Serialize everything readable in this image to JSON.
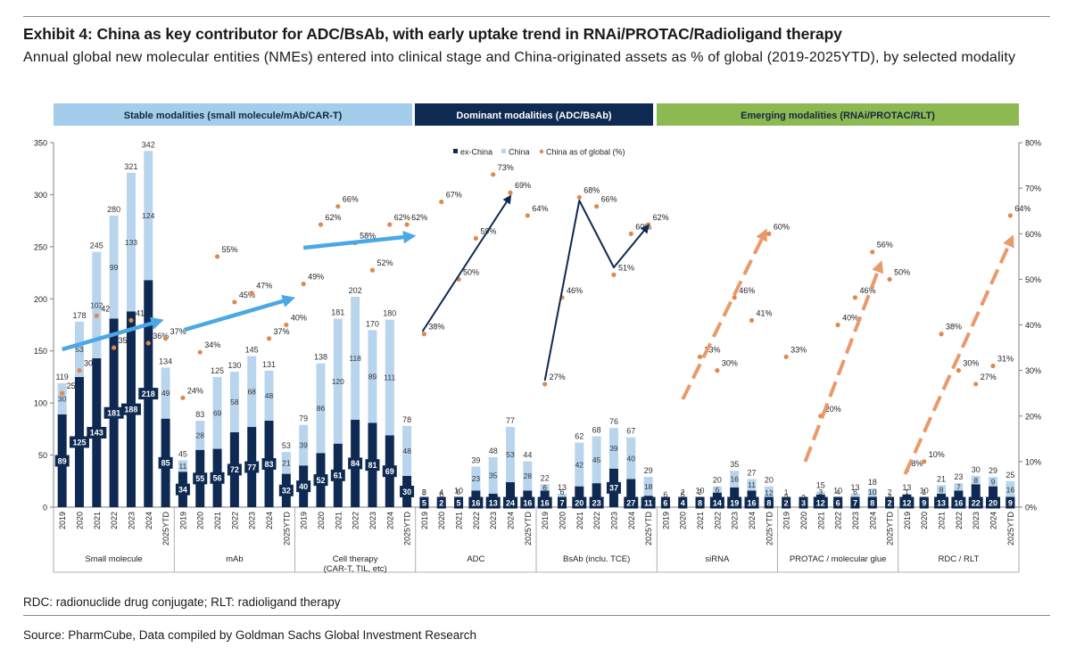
{
  "header": {
    "title": "Exhibit 4: China as key contributor for ADC/BsAb, with early uptake trend in RNAi/PROTAC/Radioligand therapy",
    "subtitle": "Annual global new molecular entities (NMEs) entered into clinical stage and China-originated assets as % of global (2019-2025YTD), by selected modality"
  },
  "footer": {
    "note": "RDC: radionuclide drug conjugate; RLT: radioligand therapy",
    "source": "Source: PharmCube, Data compiled by Goldman Sachs Global Investment Research"
  },
  "colors": {
    "exchina": "#0e2a52",
    "china": "#b9d5ee",
    "pct": "#e0894f",
    "stable_band": "#a4cdeb",
    "dominant_band": "#0e2a52",
    "emerging_band": "#8db953",
    "arrow_blue": "#4aa8e4",
    "arrow_navy": "#0e2a52",
    "arrow_orange": "#e89a6a"
  },
  "chart_data": {
    "type": "bar",
    "stacked": true,
    "categories": [
      "2019",
      "2020",
      "2021",
      "2022",
      "2023",
      "2024",
      "2025YTD"
    ],
    "y_left": {
      "min": 0,
      "max": 350,
      "ticks": [
        "0",
        "50",
        "100",
        "150",
        "200",
        "250",
        "300",
        "350"
      ]
    },
    "y_right": {
      "min": 0,
      "max": 80,
      "ticks": [
        "0%",
        "10%",
        "20%",
        "30%",
        "40%",
        "50%",
        "60%",
        "70%",
        "80%"
      ]
    },
    "legend": [
      {
        "name": "ex-China",
        "kind": "bar"
      },
      {
        "name": "China",
        "kind": "bar"
      },
      {
        "name": "China as of global (%)",
        "kind": "dot"
      }
    ],
    "bands": [
      {
        "label": "Stable modalities (small molecule/mAb/CAR-T)",
        "style": "stable"
      },
      {
        "label": "Dominant modalities (ADC/BsAb)",
        "style": "dominant"
      },
      {
        "label": "Emerging modalities (RNAi/PROTAC/RLT)",
        "style": "emerging"
      }
    ],
    "groups": [
      {
        "name": "Small molecule",
        "exchina": [
          89,
          125,
          143,
          181,
          188,
          218,
          85
        ],
        "china": [
          30,
          53,
          102,
          99,
          133,
          124,
          49
        ],
        "total": [
          119,
          178,
          245,
          280,
          321,
          342,
          134
        ],
        "pct": [
          25,
          30,
          42,
          35,
          41,
          36,
          37
        ],
        "pct_labels": [
          "25%",
          "30%",
          "42%",
          "35%",
          "41%",
          "36%",
          "37%"
        ]
      },
      {
        "name": "mAb",
        "exchina": [
          34,
          55,
          56,
          72,
          77,
          83,
          32
        ],
        "china": [
          11,
          28,
          69,
          58,
          68,
          48,
          21
        ],
        "total": [
          45,
          83,
          125,
          130,
          145,
          131,
          53
        ],
        "pct": [
          24,
          34,
          55,
          45,
          47,
          37,
          40
        ],
        "pct_labels": [
          "24%",
          "34%",
          "55%",
          "45%",
          "47%",
          "37%",
          "40%"
        ]
      },
      {
        "name": "Cell therapy",
        "name2": "(CAR-T, TIL, etc)",
        "exchina": [
          40,
          52,
          61,
          84,
          81,
          69,
          30
        ],
        "china": [
          39,
          86,
          120,
          118,
          89,
          111,
          48
        ],
        "total": [
          79,
          138,
          181,
          202,
          170,
          180,
          78
        ],
        "pct": [
          49,
          62,
          66,
          58,
          52,
          62,
          62
        ],
        "pct_labels": [
          "49%",
          "62%",
          "66%",
          "58%",
          "52%",
          "62%",
          "62%"
        ]
      },
      {
        "name": "ADC",
        "exchina": [
          5,
          2,
          5,
          16,
          13,
          24,
          16
        ],
        "china": [
          3,
          4,
          5,
          23,
          35,
          53,
          28
        ],
        "total": [
          8,
          6,
          10,
          39,
          48,
          77,
          44
        ],
        "pct": [
          38,
          67,
          50,
          59,
          73,
          69,
          64
        ],
        "pct_labels": [
          "38%",
          "67%",
          "50%",
          "59%",
          "73%",
          "69%",
          "64%"
        ]
      },
      {
        "name": "BsAb (inclu. TCE)",
        "exchina": [
          16,
          7,
          20,
          23,
          37,
          27,
          11
        ],
        "china": [
          6,
          6,
          42,
          45,
          39,
          40,
          18
        ],
        "total": [
          22,
          13,
          62,
          68,
          76,
          67,
          29
        ],
        "pct": [
          27,
          46,
          68,
          66,
          51,
          60,
          62
        ],
        "pct_labels": [
          "27%",
          "46%",
          "68%",
          "66%",
          "51%",
          "60%",
          "62%"
        ]
      },
      {
        "name": "siRNA",
        "exchina": [
          6,
          4,
          8,
          14,
          19,
          16,
          8
        ],
        "china": [
          0,
          2,
          2,
          6,
          16,
          11,
          12
        ],
        "total": [
          6,
          6,
          10,
          20,
          35,
          27,
          20
        ],
        "pct": [
          null,
          null,
          33,
          30,
          46,
          41,
          60
        ],
        "pct_labels": [
          null,
          null,
          "33%",
          "30%",
          "46%",
          "41%",
          "60%"
        ]
      },
      {
        "name": "PROTAC / molecular glue",
        "exchina": [
          2,
          3,
          12,
          6,
          7,
          8,
          2
        ],
        "china": [
          1,
          0,
          3,
          4,
          6,
          10,
          2
        ],
        "total": [
          3,
          3,
          15,
          10,
          13,
          18,
          4
        ],
        "pct": [
          33,
          null,
          20,
          40,
          46,
          56,
          50
        ],
        "pct_labels": [
          "33%",
          null,
          "20%",
          "40%",
          "46%",
          "56%",
          "50%"
        ]
      },
      {
        "name": "RDC / RLT",
        "exchina": [
          12,
          9,
          13,
          16,
          22,
          20,
          9
        ],
        "china": [
          1,
          1,
          8,
          7,
          8,
          9,
          16
        ],
        "total": [
          13,
          10,
          21,
          23,
          30,
          29,
          25
        ],
        "pct": [
          8,
          10,
          38,
          30,
          27,
          31,
          64
        ],
        "pct_labels": [
          "8%",
          "10%",
          "38%",
          "30%",
          "27%",
          "31%",
          "64%"
        ]
      }
    ]
  }
}
